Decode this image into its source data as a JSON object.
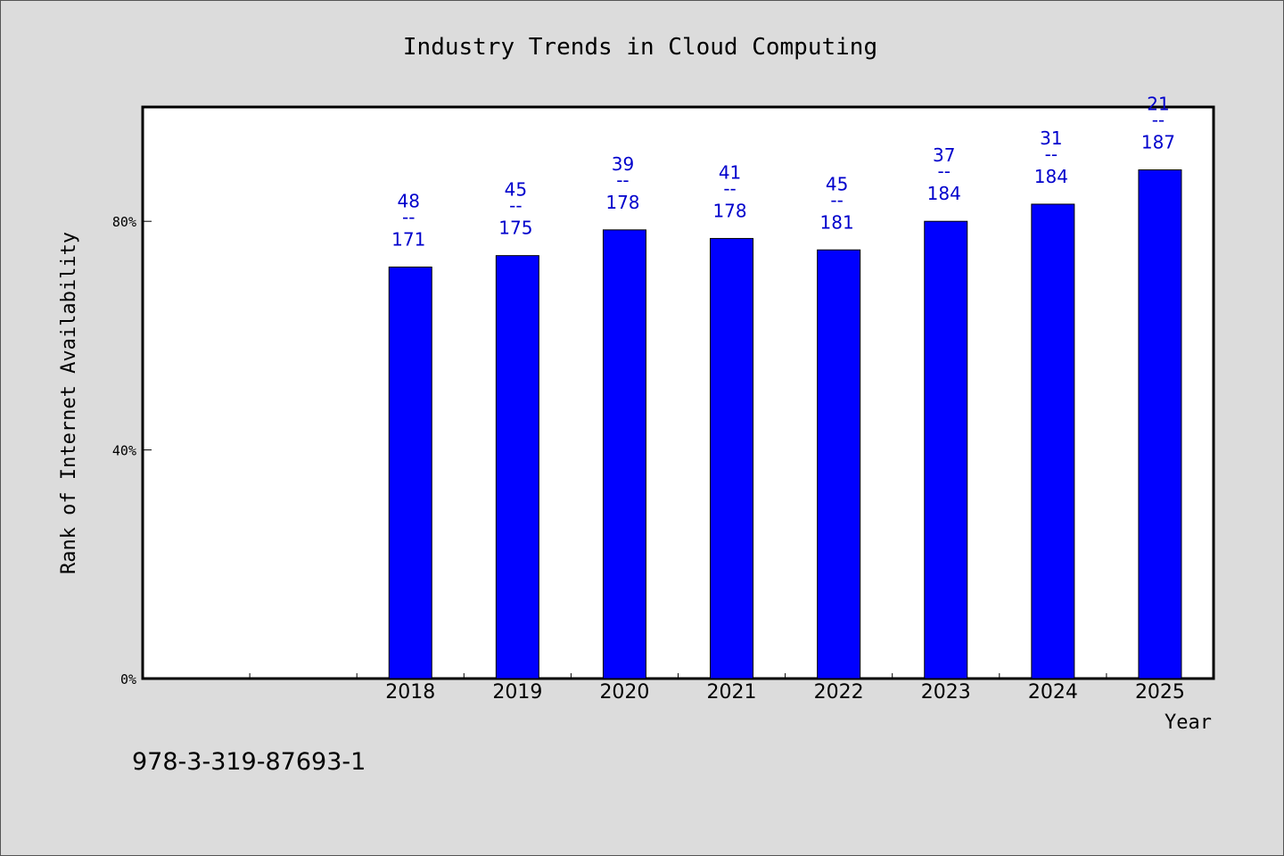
{
  "chart_data": {
    "type": "bar",
    "title": "Industry Trends in Cloud Computing",
    "xlabel": "Year",
    "ylabel": "Rank of Internet Availability",
    "categories": [
      "2018",
      "2019",
      "2020",
      "2021",
      "2022",
      "2023",
      "2024",
      "2025"
    ],
    "values": [
      72,
      74,
      78.5,
      77,
      75,
      80,
      83,
      89
    ],
    "data_labels": [
      {
        "top": "48",
        "sep": "--",
        "bottom": "171"
      },
      {
        "top": "45",
        "sep": "--",
        "bottom": "175"
      },
      {
        "top": "39",
        "sep": "--",
        "bottom": "178"
      },
      {
        "top": "41",
        "sep": "--",
        "bottom": "178"
      },
      {
        "top": "45",
        "sep": "--",
        "bottom": "181"
      },
      {
        "top": "37",
        "sep": "--",
        "bottom": "184"
      },
      {
        "top": "31",
        "sep": "--",
        "bottom": "184"
      },
      {
        "top": "21",
        "sep": "--",
        "bottom": "187"
      }
    ],
    "yticks": [
      0,
      40,
      80
    ],
    "ytick_labels": [
      "0%",
      "40%",
      "80%"
    ],
    "ylim": [
      0,
      100
    ],
    "x_slots": 10,
    "first_category_slot": 2,
    "grid": false,
    "legend": "none",
    "colors": {
      "bar": "#0000ff",
      "bar_edge": "#000000",
      "data_label": "#0000cc",
      "background": "#dcdcdc",
      "plot_background": "#ffffff"
    }
  },
  "footer": {
    "isbn": "978-3-319-87693-1"
  }
}
